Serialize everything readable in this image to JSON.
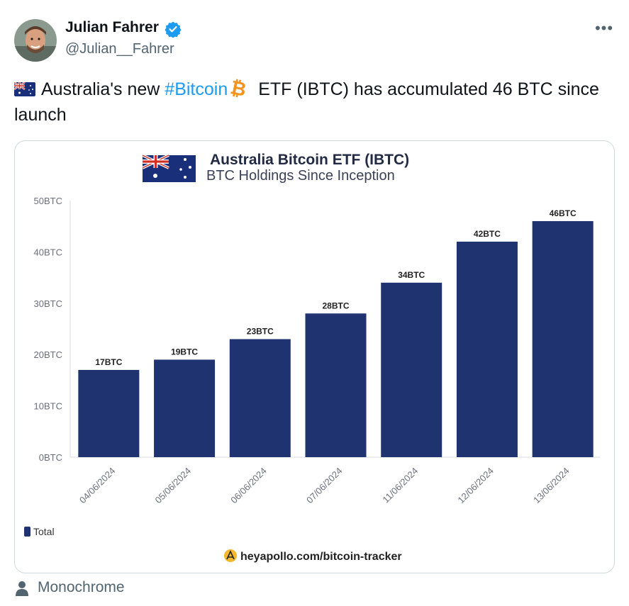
{
  "tweet": {
    "author_name": "Julian Fahrer",
    "handle": "@Julian__Fahrer",
    "verified": true,
    "more_icon": "more-horizontal-icon",
    "text_before": "Australia's new ",
    "hashtag": "#Bitcoin",
    "text_after": " ETF (IBTC) has accumulated 46 BTC since launch",
    "flag_icon": "australia-flag-icon",
    "coin_icon": "bitcoin-icon",
    "footer_label": "Monochrome",
    "footer_icon": "person-icon",
    "link_color": "#1d9bf0",
    "coin_color": "#f7931a"
  },
  "chart_data": {
    "type": "bar",
    "title": "Australia Bitcoin ETF (IBTC)",
    "subtitle": "BTC Holdings Since Inception",
    "categories": [
      "04/06/2024",
      "05/06/2024",
      "06/06/2024",
      "07/06/2024",
      "11/06/2024",
      "12/06/2024",
      "13/06/2024"
    ],
    "series": [
      {
        "name": "Total",
        "values": [
          17,
          19,
          23,
          28,
          34,
          42,
          46
        ],
        "color": "#1e3370"
      }
    ],
    "data_labels": [
      "17BTC",
      "19BTC",
      "23BTC",
      "28BTC",
      "34BTC",
      "42BTC",
      "46BTC"
    ],
    "y_ticks": [
      0,
      10,
      20,
      30,
      40,
      50
    ],
    "y_tick_labels": [
      "0BTC",
      "10BTC",
      "20BTC",
      "30BTC",
      "40BTC",
      "50BTC"
    ],
    "ylim": [
      0,
      50
    ],
    "grid": false,
    "legend": "bottom-left",
    "source": "heyapollo.com/bitcoin-tracker"
  }
}
